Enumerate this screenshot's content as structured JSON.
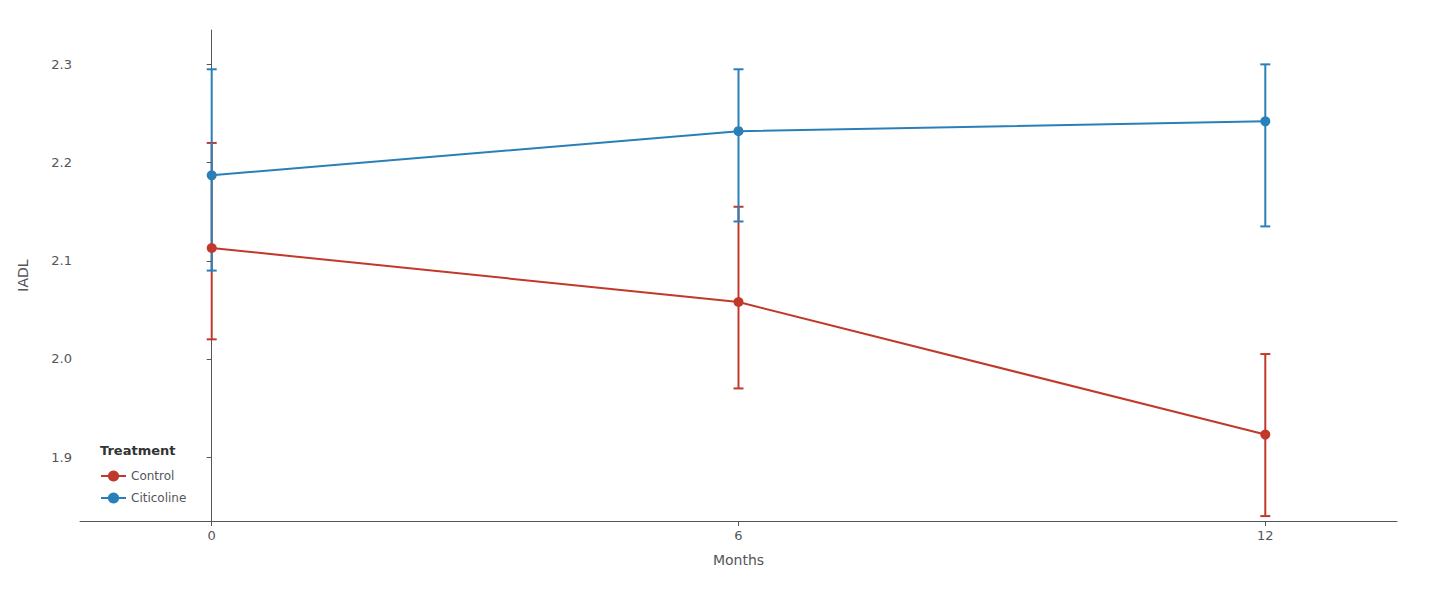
{
  "chart_data": {
    "type": "line",
    "x": [
      0,
      6,
      12
    ],
    "xlabel": "Months",
    "ylabel": "IADL",
    "xlim": [
      -1.5,
      13.5
    ],
    "xticks": [
      0,
      6,
      12
    ],
    "ylim": [
      1.835,
      2.335
    ],
    "yticks": [
      1.9,
      {
        "value": 2.0,
        "label": "2.0"
      },
      2.1,
      2.2,
      2.3
    ],
    "grid": false,
    "legend": "lower left",
    "legend_title": "Treatment",
    "series": [
      {
        "name": "Control",
        "color": "#c0392b",
        "marker": "circle",
        "values": [
          2.113,
          2.058,
          1.923
        ],
        "ci_lower": [
          2.02,
          1.97,
          1.84
        ],
        "ci_upper": [
          2.22,
          2.155,
          2.005
        ]
      },
      {
        "name": "Citicoline",
        "color": "#2980b9",
        "marker": "circle",
        "values": [
          2.187,
          2.232,
          2.242
        ],
        "ci_lower": [
          2.09,
          2.14,
          2.135
        ],
        "ci_upper": [
          2.295,
          2.295,
          2.3
        ]
      }
    ]
  }
}
